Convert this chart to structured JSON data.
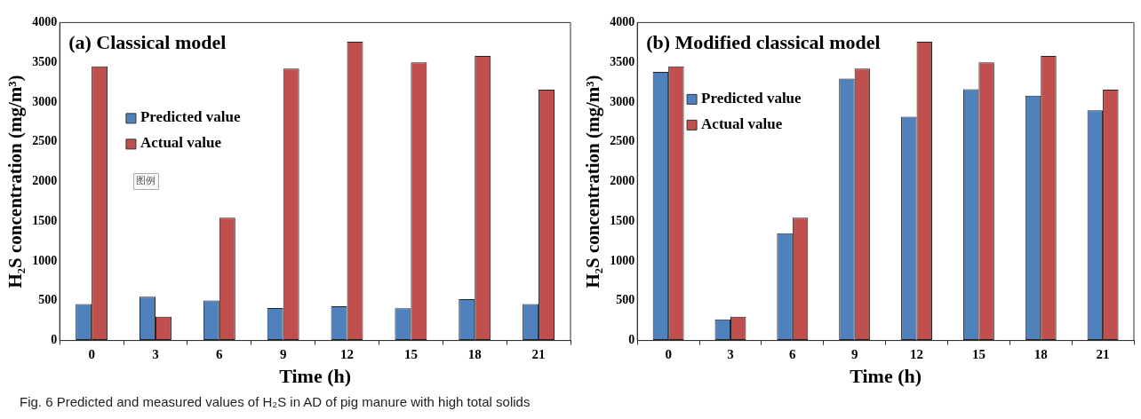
{
  "chart_data": [
    {
      "type": "bar",
      "title": "(a) Classical model",
      "xlabel": "Time (h)",
      "ylabel": "H₂S concentration (mg/m³)",
      "categories": [
        "0",
        "3",
        "6",
        "9",
        "12",
        "15",
        "18",
        "21"
      ],
      "series": [
        {
          "name": "Predicted value",
          "color": "#4f81bd",
          "values": [
            460,
            550,
            505,
            410,
            430,
            405,
            520,
            460
          ]
        },
        {
          "name": "Actual value",
          "color": "#c0504d",
          "values": [
            3450,
            300,
            1545,
            3420,
            3760,
            3500,
            3580,
            3155
          ]
        }
      ],
      "ylim": [
        0,
        4000
      ],
      "yticks": [
        0,
        500,
        1000,
        1500,
        2000,
        2500,
        3000,
        3500,
        4000
      ],
      "grid": false,
      "legend": "left",
      "annotations": [
        "图例",
        "Fig. 6  Predicted and measured values of H₂S in AD of pig manure with high total solids"
      ]
    },
    {
      "type": "bar",
      "title": "(b) Modified classical model",
      "xlabel": "Time (h)",
      "ylabel": "H₂S concentration (mg/m³)",
      "categories": [
        "0",
        "3",
        "6",
        "9",
        "12",
        "15",
        "18",
        "21"
      ],
      "series": [
        {
          "name": "Predicted value",
          "color": "#4f81bd",
          "values": [
            3380,
            265,
            1350,
            3295,
            2815,
            3160,
            3080,
            2895
          ]
        },
        {
          "name": "Actual value",
          "color": "#c0504d",
          "values": [
            3450,
            300,
            1545,
            3420,
            3760,
            3500,
            3580,
            3155
          ]
        }
      ],
      "ylim": [
        0,
        4000
      ],
      "yticks": [
        0,
        500,
        1000,
        1500,
        2000,
        2500,
        3000,
        3500,
        4000
      ],
      "grid": false,
      "legend": "top left"
    }
  ]
}
